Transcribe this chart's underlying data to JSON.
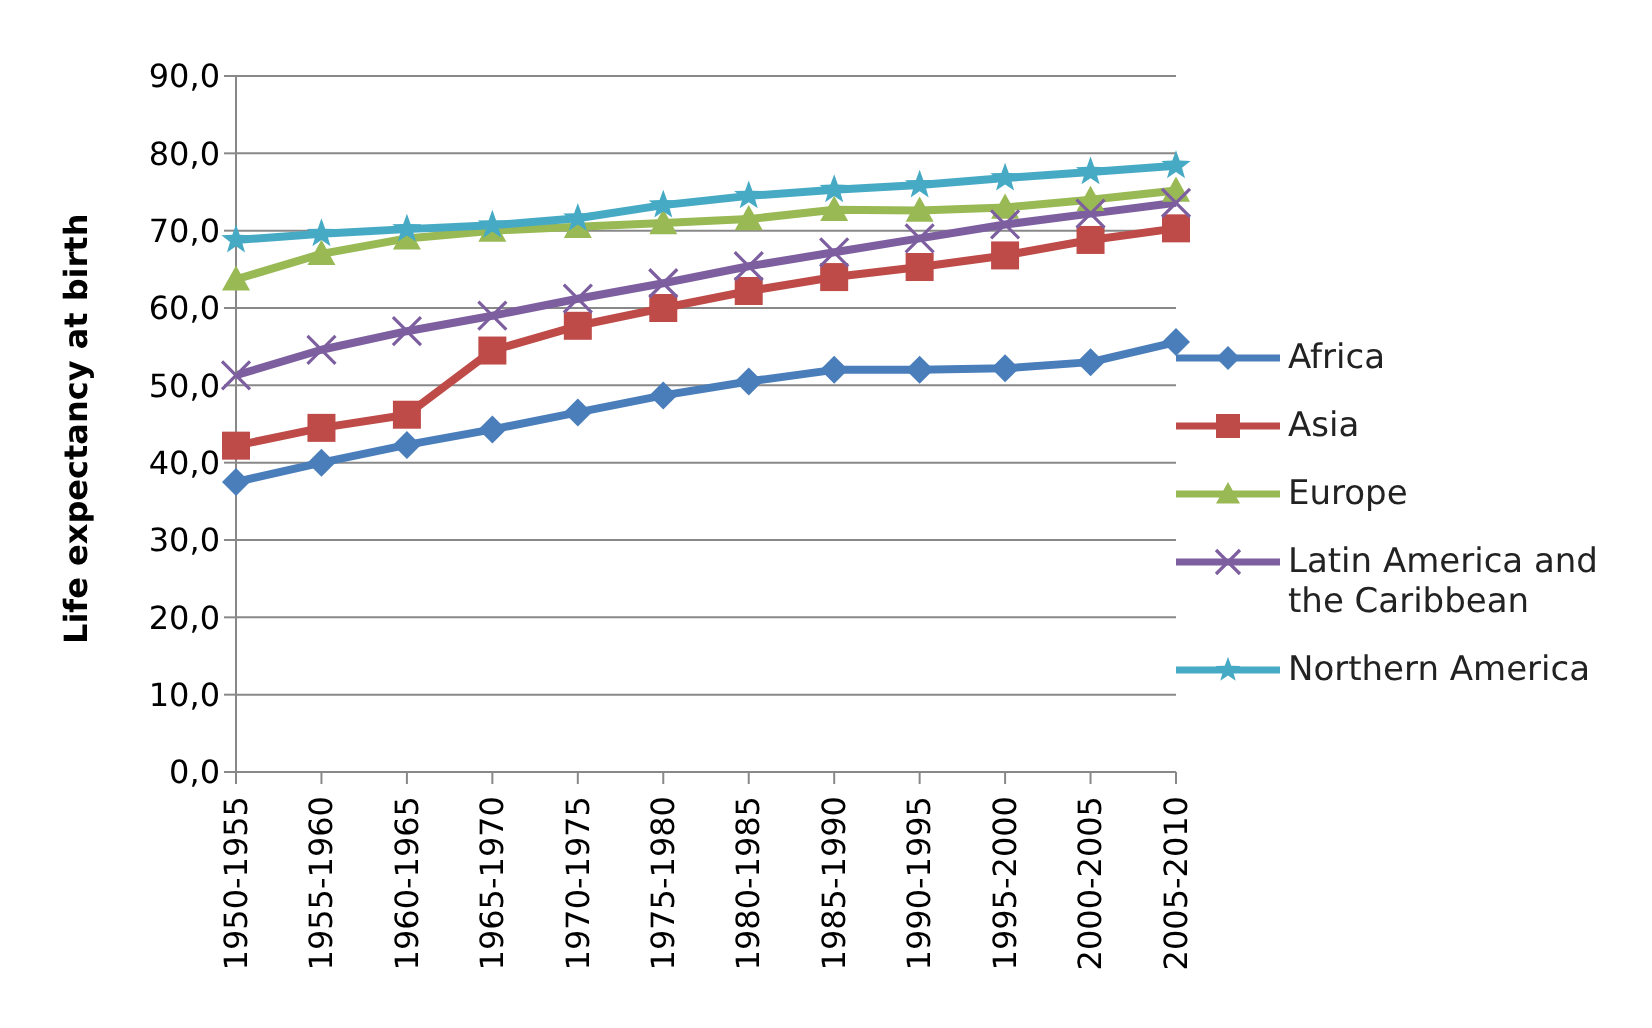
{
  "chart_data": {
    "type": "line",
    "ylabel": "Life expectancy at birth",
    "categories": [
      "1950-1955",
      "1955-1960",
      "1960-1965",
      "1965-1970",
      "1970-1975",
      "1975-1980",
      "1980-1985",
      "1985-1990",
      "1990-1995",
      "1995-2000",
      "2000-2005",
      "2005-2010"
    ],
    "series": [
      {
        "name": "Africa",
        "color": "#4a7ebb",
        "marker": "diamond",
        "values": [
          37.5,
          40,
          42.3,
          44.3,
          46.5,
          48.7,
          50.5,
          52,
          52,
          52.2,
          53,
          55.6
        ]
      },
      {
        "name": "Asia",
        "color": "#be4b48",
        "marker": "square",
        "values": [
          42.2,
          44.5,
          46.2,
          54.5,
          57.7,
          60,
          62.2,
          64,
          65.3,
          66.8,
          68.8,
          70.3
        ]
      },
      {
        "name": "Europe",
        "color": "#98b954",
        "marker": "triangle",
        "values": [
          63.7,
          67,
          69,
          70,
          70.5,
          71,
          71.5,
          72.7,
          72.6,
          73,
          74,
          75.2
        ]
      },
      {
        "name": "Latin America and the Caribbean",
        "color": "#7d5fa0",
        "marker": "cross",
        "values": [
          51.3,
          54.6,
          57,
          59,
          61.2,
          63.2,
          65.4,
          67.2,
          69,
          70.8,
          72.2,
          73.6
        ]
      },
      {
        "name": "Northern America",
        "color": "#46aac5",
        "marker": "star",
        "values": [
          68.8,
          69.6,
          70.2,
          70.7,
          71.6,
          73.3,
          74.5,
          75.3,
          75.9,
          76.8,
          77.6,
          78.4
        ]
      }
    ],
    "ylim": [
      0,
      90
    ],
    "yticks": [
      {
        "value": 0,
        "label": "0,0"
      },
      {
        "value": 10,
        "label": "10,0"
      },
      {
        "value": 20,
        "label": "20,0"
      },
      {
        "value": 30,
        "label": "30,0"
      },
      {
        "value": 40,
        "label": "40,0"
      },
      {
        "value": 50,
        "label": "50,0"
      },
      {
        "value": 60,
        "label": "60,0"
      },
      {
        "value": 70,
        "label": "70,0"
      },
      {
        "value": 80,
        "label": "80,0"
      },
      {
        "value": 90,
        "label": "90,0"
      }
    ],
    "grid": "y",
    "legend": "right",
    "line_style": "solid"
  }
}
